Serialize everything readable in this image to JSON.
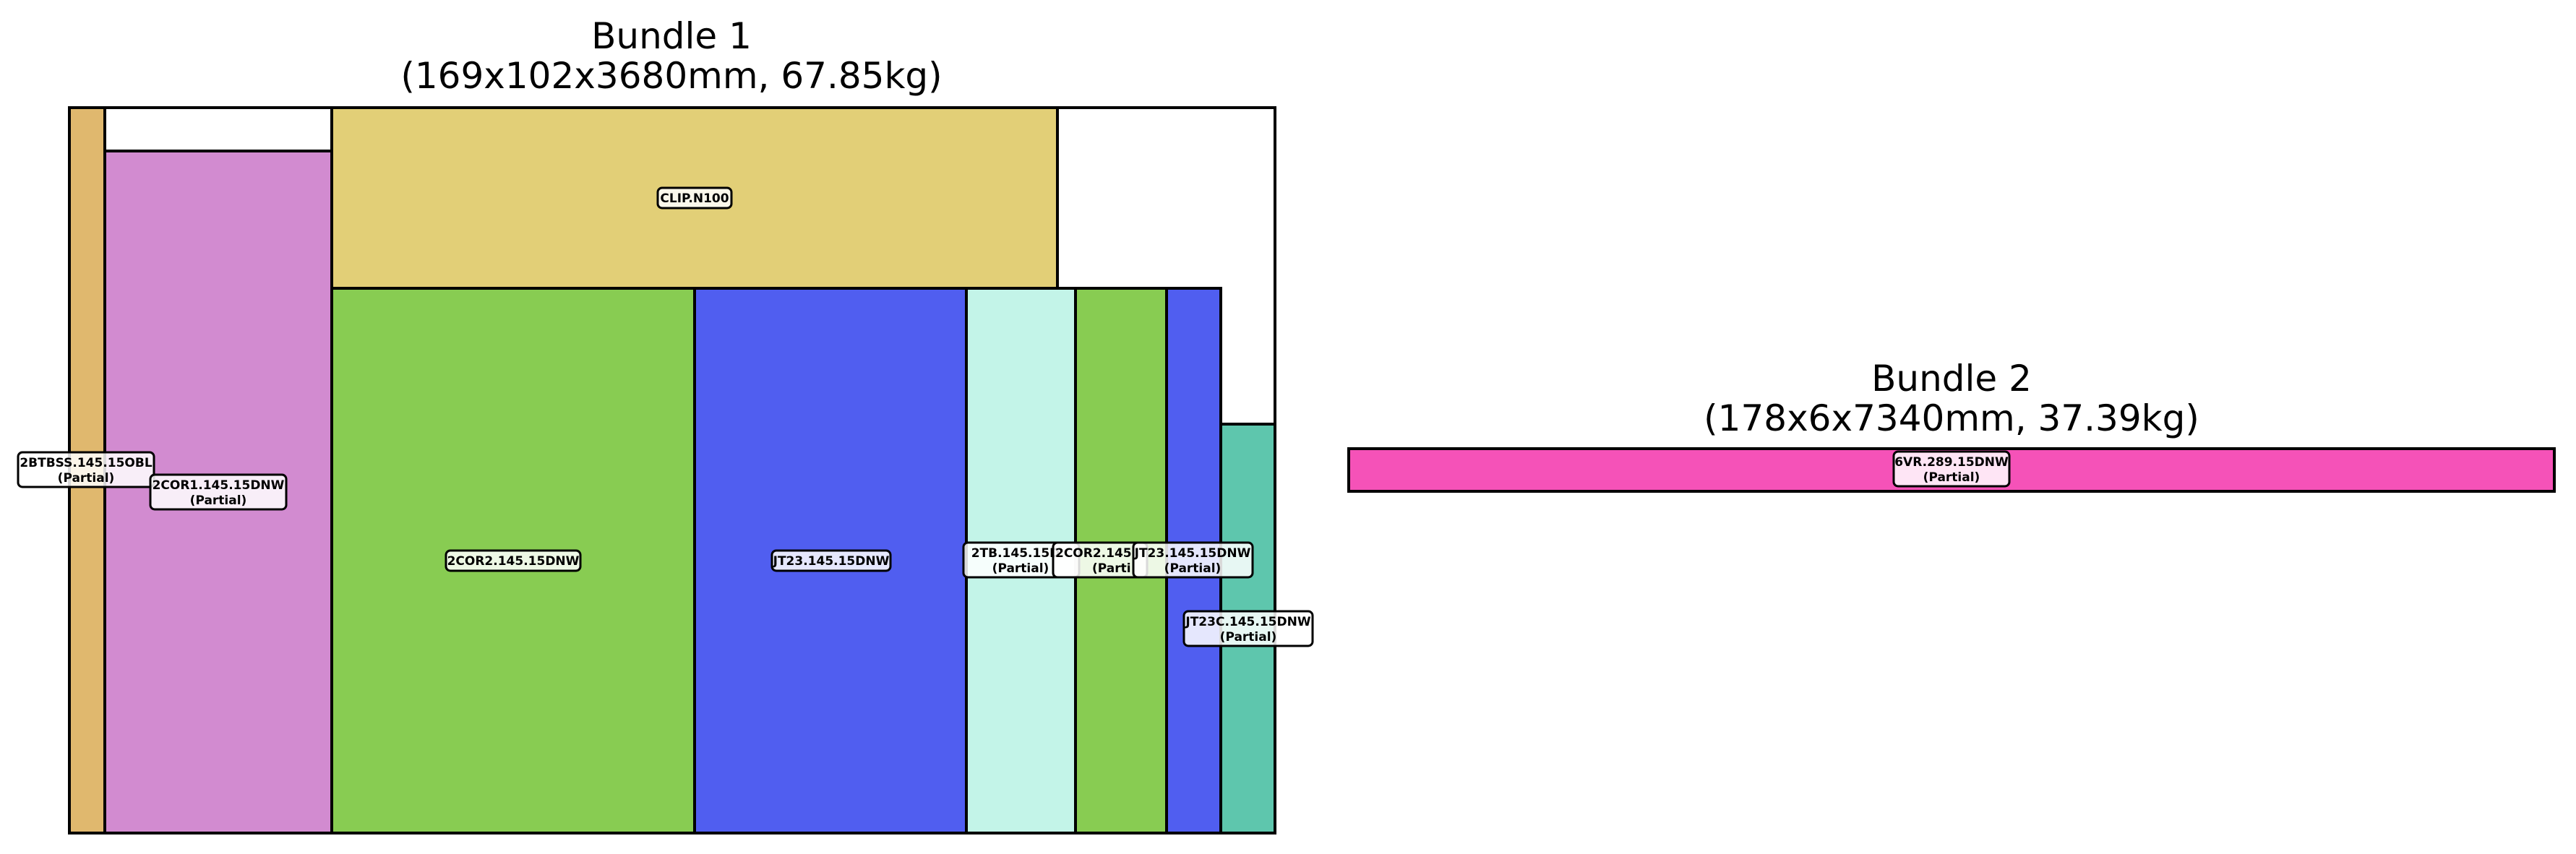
{
  "bundles": [
    {
      "title_line1": "Bundle 1",
      "title_line2": "(169x102x3680mm, 67.85kg)",
      "pieces": [
        {
          "label": "2BTBSS.145.15OBL",
          "sub": "(Partial)",
          "color": "#e0b86e"
        },
        {
          "label": "2COR1.145.15DNW",
          "sub": "(Partial)",
          "color": "#d28bd0"
        },
        {
          "label": "CLIP.N100",
          "sub": "",
          "color": "#e2cf77"
        },
        {
          "label": "2COR2.145.15DNW",
          "sub": "",
          "color": "#88cc52"
        },
        {
          "label": "JT23.145.15DNW",
          "sub": "",
          "color": "#505ef0"
        },
        {
          "label": "2TB.145.15D",
          "sub": "(Partial)",
          "color": "#c3f4e8"
        },
        {
          "label": "2COR2.145",
          "sub": "(Parti",
          "color": "#88cc52"
        },
        {
          "label": "JT23.145.15DNW",
          "sub": "(Partial)",
          "color": "#505ef0"
        },
        {
          "label": "JT23C.145.15DNW",
          "sub": "(Partial)",
          "color": "#5ec6ad"
        }
      ]
    },
    {
      "title_line1": "Bundle 2",
      "title_line2": "(178x6x7340mm, 37.39kg)",
      "pieces": [
        {
          "label": "6VR.289.15DNW",
          "sub": "(Partial)",
          "color": "#f552b8"
        }
      ]
    }
  ]
}
